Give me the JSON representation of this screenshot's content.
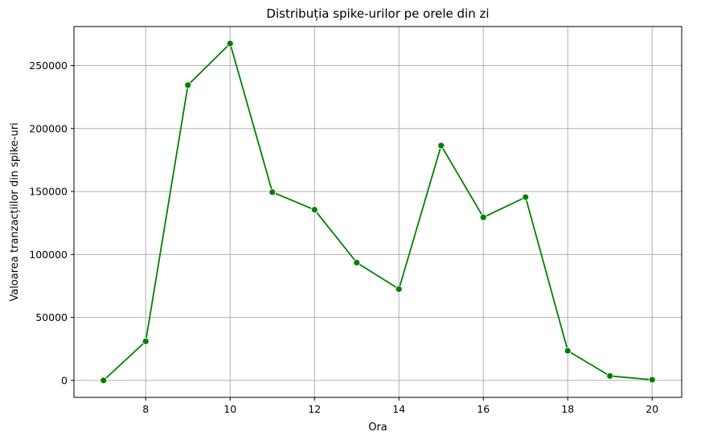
{
  "chart_data": {
    "type": "line",
    "title": "Distribuția spike-urilor pe orele din zi",
    "xlabel": "Ora",
    "ylabel": "Valoarea tranzacțiilor din spike-uri",
    "x": [
      7,
      8,
      9,
      10,
      11,
      12,
      13,
      14,
      15,
      16,
      17,
      18,
      19,
      20
    ],
    "series": [
      {
        "values": [
          0,
          31000,
          234500,
          267500,
          149500,
          135500,
          93500,
          72500,
          186500,
          129500,
          145500,
          23500,
          3500,
          500
        ],
        "color": "#008000",
        "marker": "circle"
      }
    ],
    "xlim": [
      6.3,
      20.7
    ],
    "ylim": [
      -13500,
      281000
    ],
    "xticks": [
      8,
      10,
      12,
      14,
      16,
      18,
      20
    ],
    "yticks": [
      0,
      50000,
      100000,
      150000,
      200000,
      250000
    ],
    "grid": true
  }
}
